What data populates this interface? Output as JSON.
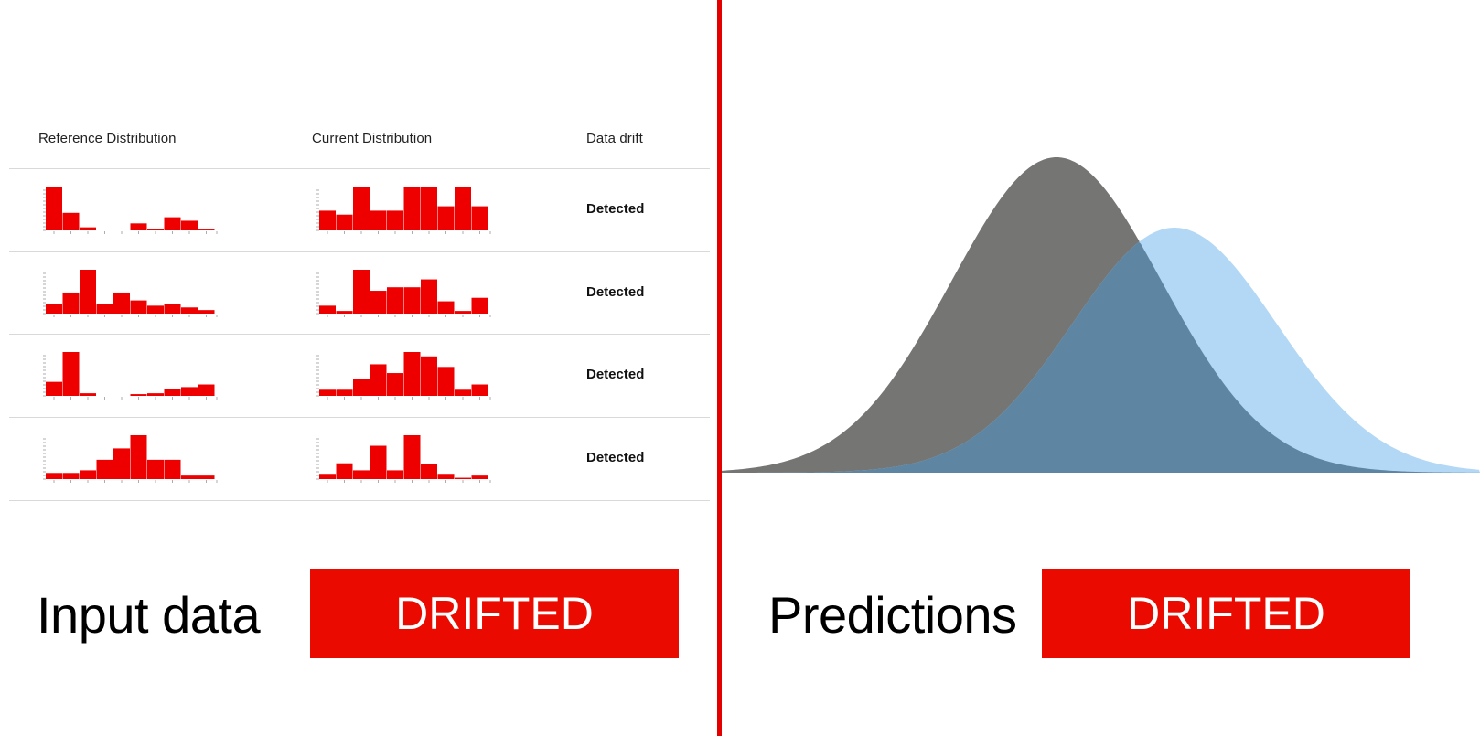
{
  "table": {
    "headers": {
      "reference": "Reference Distribution",
      "current": "Current Distribution",
      "drift": "Data drift"
    },
    "rows": [
      {
        "status": "Detected"
      },
      {
        "status": "Detected"
      },
      {
        "status": "Detected"
      },
      {
        "status": "Detected"
      }
    ]
  },
  "left_footer": {
    "label": "Input data",
    "badge": "DRIFTED"
  },
  "right_footer": {
    "label": "Predictions",
    "badge": "DRIFTED"
  },
  "colors": {
    "bar": "#ee0000",
    "divider": "#e50000",
    "badge": "#ea0a00",
    "reference_curve": "#757674",
    "current_curve": "#b3d8f6",
    "overlap": "#5e86a3"
  },
  "chart_data": [
    {
      "type": "bar",
      "name": "row1-reference",
      "values": [
        1.0,
        0.4,
        0.07,
        0,
        0,
        0.16,
        0.03,
        0.3,
        0.22,
        0.02
      ]
    },
    {
      "type": "bar",
      "name": "row1-current",
      "values": [
        0.45,
        0.36,
        1.0,
        0.45,
        0.45,
        1.0,
        1.0,
        0.55,
        1.0,
        0.55
      ]
    },
    {
      "type": "bar",
      "name": "row2-reference",
      "values": [
        0.22,
        0.48,
        1.0,
        0.22,
        0.48,
        0.3,
        0.18,
        0.22,
        0.14,
        0.08
      ]
    },
    {
      "type": "bar",
      "name": "row2-current",
      "values": [
        0.18,
        0.06,
        1.0,
        0.52,
        0.6,
        0.6,
        0.78,
        0.28,
        0.06,
        0.36
      ]
    },
    {
      "type": "bar",
      "name": "row3-reference",
      "values": [
        0.32,
        1.0,
        0.06,
        0,
        0,
        0.04,
        0.06,
        0.16,
        0.2,
        0.26
      ]
    },
    {
      "type": "bar",
      "name": "row3-current",
      "values": [
        0.14,
        0.14,
        0.38,
        0.72,
        0.52,
        1.0,
        0.9,
        0.66,
        0.14,
        0.26
      ]
    },
    {
      "type": "bar",
      "name": "row4-reference",
      "values": [
        0.14,
        0.14,
        0.2,
        0.44,
        0.7,
        1.0,
        0.44,
        0.44,
        0.08,
        0.08
      ]
    },
    {
      "type": "bar",
      "name": "row4-current",
      "values": [
        0.12,
        0.36,
        0.2,
        0.76,
        0.2,
        1.0,
        0.34,
        0.12,
        0.03,
        0.08
      ]
    },
    {
      "type": "area",
      "name": "predictions",
      "series": [
        {
          "distribution": "reference",
          "mean": 1155,
          "std": 115,
          "peak": 345
        },
        {
          "distribution": "current",
          "mean": 1284,
          "std": 112,
          "peak": 268
        }
      ],
      "xlim": [
        805,
        1618
      ]
    }
  ]
}
